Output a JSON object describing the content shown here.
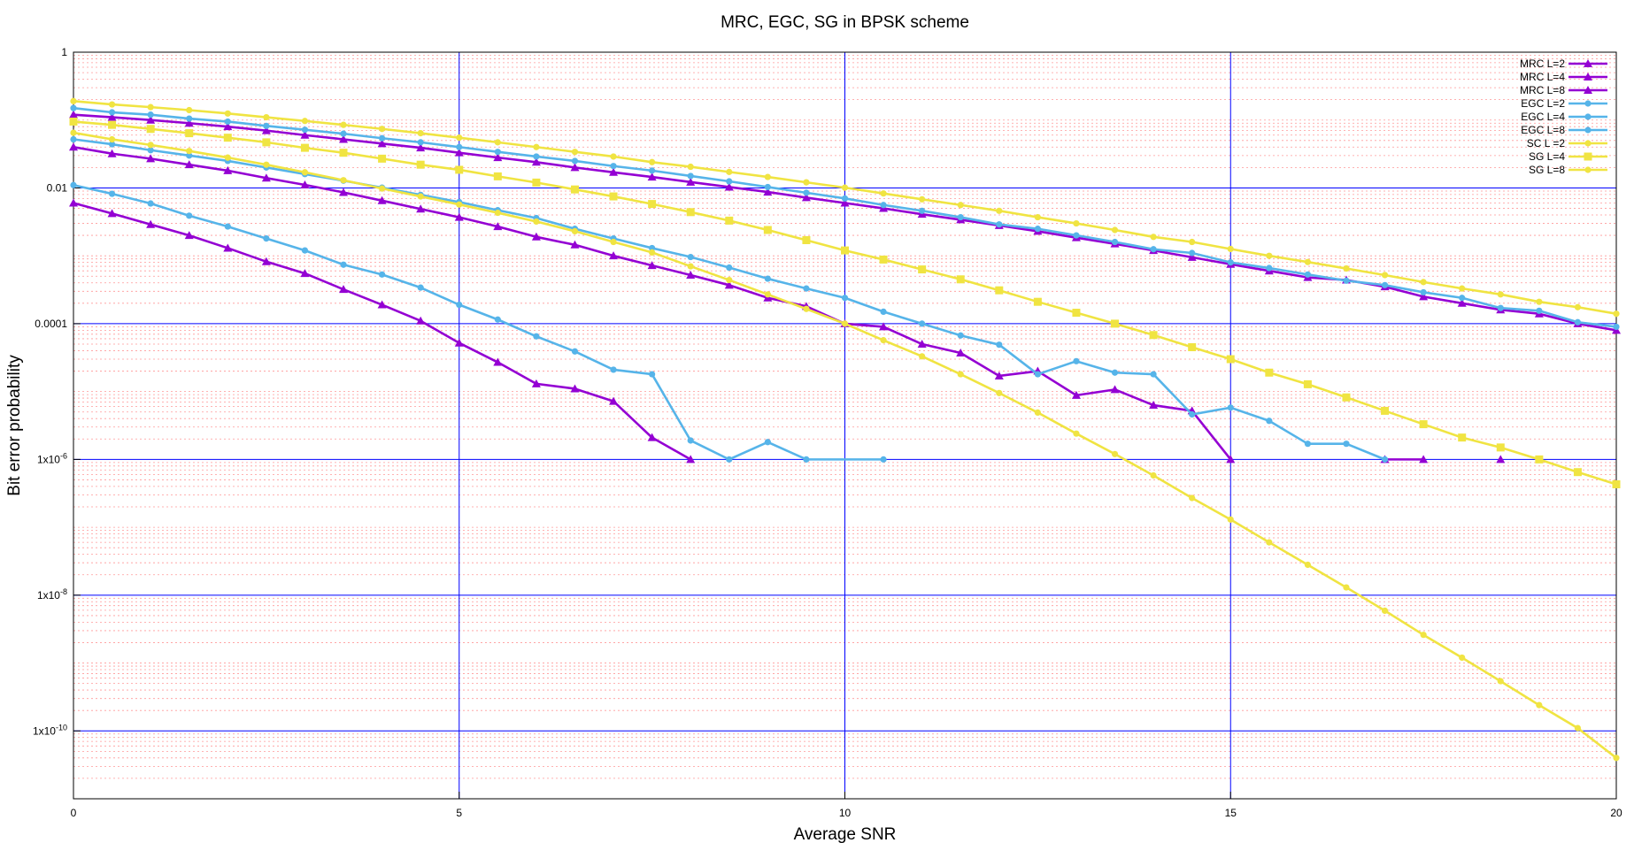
{
  "chart_data": {
    "type": "line",
    "title": "MRC, EGC, SG in BPSK scheme",
    "xlabel": "Average SNR",
    "ylabel": "Bit error probability",
    "xlim": [
      0,
      20
    ],
    "ylim": [
      1e-11,
      1
    ],
    "yscale": "log",
    "grid": true,
    "legend_position": "top-right",
    "xticks": [
      0,
      5,
      10,
      15,
      20
    ],
    "yticks": [
      {
        "value": 1,
        "base": "1",
        "exp": ""
      },
      {
        "value": 0.01,
        "base": "0.01",
        "exp": ""
      },
      {
        "value": 0.0001,
        "base": "0.0001",
        "exp": ""
      },
      {
        "value": 1e-06,
        "base": "1x10",
        "exp": "-6"
      },
      {
        "value": 1e-08,
        "base": "1x10",
        "exp": "-8"
      },
      {
        "value": 1e-10,
        "base": "1x10",
        "exp": "-10"
      }
    ],
    "colors": {
      "MRC": "#9400d3",
      "EGC": "#56b4e9",
      "SG": "#f0e442",
      "major_grid": "#0000ff",
      "minor_grid": "#ff9999"
    },
    "series": [
      {
        "name": "MRC L=2",
        "group": "MRC",
        "marker": "triangle",
        "color": "#9400d3",
        "x": [
          0,
          0.5,
          1,
          1.5,
          2,
          2.5,
          3,
          3.5,
          4,
          4.5,
          5,
          5.5,
          6,
          6.5,
          7,
          7.5,
          8,
          8.5,
          9,
          9.5,
          10,
          10.5,
          11,
          11.5,
          12,
          12.5,
          13,
          13.5,
          14,
          14.5,
          15,
          15.5,
          16,
          16.5,
          17,
          17.5,
          18,
          18.5,
          19,
          19.5,
          20
        ],
        "y": [
          0.12,
          0.11,
          0.1,
          0.09,
          0.08,
          0.07,
          0.06,
          0.052,
          0.045,
          0.039,
          0.033,
          0.028,
          0.024,
          0.02,
          0.017,
          0.0145,
          0.0122,
          0.0103,
          0.0087,
          0.0072,
          0.006,
          0.005,
          0.0041,
          0.0034,
          0.0028,
          0.0023,
          0.00185,
          0.0015,
          0.0012,
          0.00095,
          0.00075,
          0.0006,
          0.00048,
          0.00044,
          0.00035,
          0.00025,
          0.0002,
          0.00016,
          0.00014,
          0.0001,
          8e-05
        ]
      },
      {
        "name": "MRC L=4",
        "group": "MRC",
        "marker": "triangle",
        "color": "#9400d3",
        "x": [
          0,
          0.5,
          1,
          1.5,
          2,
          2.5,
          3,
          3.5,
          4,
          4.5,
          5,
          5.5,
          6,
          6.5,
          7,
          7.5,
          8,
          8.5,
          9,
          9.5,
          10,
          10.5,
          11,
          11.5,
          12,
          12.5,
          13,
          13.5,
          14,
          14.5,
          15,
          15.5,
          16,
          16.5,
          17,
          17.5,
          18,
          18.5,
          19,
          19.5,
          20
        ],
        "y": [
          0.04,
          0.032,
          0.027,
          0.022,
          0.018,
          0.014,
          0.0111,
          0.0086,
          0.0065,
          0.0049,
          0.0037,
          0.0027,
          0.0019,
          0.00145,
          0.001,
          0.00072,
          0.00052,
          0.00037,
          0.00024,
          0.00018,
          0.0001,
          9e-05,
          5e-05,
          3.7e-05,
          1.7e-05,
          2e-05,
          8.8e-06,
          1.07e-05,
          6.3e-06,
          5.2e-06,
          1e-06,
          null,
          null,
          null,
          1e-06,
          1e-06,
          null,
          1e-06,
          null,
          null,
          null
        ]
      },
      {
        "name": "MRC L=8",
        "group": "MRC",
        "marker": "triangle",
        "color": "#9400d3",
        "x": [
          0,
          0.5,
          1,
          1.5,
          2,
          2.5,
          3,
          3.5,
          4,
          4.5,
          5,
          5.5,
          6,
          6.5,
          7,
          7.5,
          8
        ],
        "y": [
          0.006,
          0.0042,
          0.0029,
          0.002,
          0.0013,
          0.00082,
          0.00055,
          0.00032,
          0.00019,
          0.00011,
          5.2e-05,
          2.7e-05,
          1.3e-05,
          1.1e-05,
          7.2e-06,
          2.1e-06,
          1e-06
        ]
      },
      {
        "name": "EGC L=2",
        "group": "EGC",
        "marker": "circle",
        "color": "#56b4e9",
        "x": [
          0,
          0.5,
          1,
          1.5,
          2,
          2.5,
          3,
          3.5,
          4,
          4.5,
          5,
          5.5,
          6,
          6.5,
          7,
          7.5,
          8,
          8.5,
          9,
          9.5,
          10,
          10.5,
          11,
          11.5,
          12,
          12.5,
          13,
          13.5,
          14,
          14.5,
          15,
          15.5,
          16,
          16.5,
          17,
          17.5,
          18,
          18.5,
          19,
          19.5,
          20
        ],
        "y": [
          0.15,
          0.13,
          0.12,
          0.105,
          0.095,
          0.082,
          0.072,
          0.063,
          0.054,
          0.047,
          0.04,
          0.034,
          0.029,
          0.025,
          0.021,
          0.018,
          0.015,
          0.0125,
          0.0103,
          0.0085,
          0.007,
          0.0056,
          0.0046,
          0.0037,
          0.0029,
          0.0025,
          0.002,
          0.0016,
          0.00125,
          0.0011,
          0.0008,
          0.00066,
          0.00053,
          0.00043,
          0.00037,
          0.00029,
          0.00024,
          0.00017,
          0.000155,
          0.000105,
          9e-05
        ]
      },
      {
        "name": "EGC L=4",
        "group": "EGC",
        "marker": "circle",
        "color": "#56b4e9",
        "x": [
          0,
          0.5,
          1,
          1.5,
          2,
          2.5,
          3,
          3.5,
          4,
          4.5,
          5,
          5.5,
          6,
          6.5,
          7,
          7.5,
          8,
          8.5,
          9,
          9.5,
          10,
          10.5,
          11,
          11.5,
          12,
          12.5,
          13,
          13.5,
          14,
          14.5,
          15,
          15.5,
          16,
          16.5,
          17
        ],
        "y": [
          0.052,
          0.044,
          0.036,
          0.03,
          0.025,
          0.02,
          0.016,
          0.0128,
          0.0101,
          0.0079,
          0.0062,
          0.0047,
          0.0036,
          0.0025,
          0.0018,
          0.0013,
          0.00096,
          0.00067,
          0.00046,
          0.00033,
          0.00024,
          0.00015,
          0.0001,
          6.7e-05,
          4.9e-05,
          1.8e-05,
          2.8e-05,
          1.9e-05,
          1.8e-05,
          4.6e-06,
          5.8e-06,
          3.7e-06,
          1.7e-06,
          1.7e-06,
          1e-06
        ]
      },
      {
        "name": "EGC L=8",
        "group": "EGC",
        "marker": "circle",
        "color": "#56b4e9",
        "x": [
          0,
          0.5,
          1,
          1.5,
          2,
          2.5,
          3,
          3.5,
          4,
          4.5,
          5,
          5.5,
          6,
          6.5,
          7,
          7.5,
          8,
          8.5,
          9,
          9.5,
          10.5
        ],
        "y": [
          0.011,
          0.0082,
          0.0059,
          0.0039,
          0.0027,
          0.0018,
          0.0012,
          0.00074,
          0.00053,
          0.00034,
          0.00019,
          0.000115,
          6.5e-05,
          3.9e-05,
          2.1e-05,
          1.8e-05,
          1.9e-06,
          1e-06,
          1.8e-06,
          1e-06,
          1e-06
        ]
      },
      {
        "name": "SC L =2",
        "group": "SG",
        "marker": "circle",
        "color": "#f0e442",
        "x": [
          0,
          0.5,
          1,
          1.5,
          2,
          2.5,
          3,
          3.5,
          4,
          4.5,
          5,
          5.5,
          6,
          6.5,
          7,
          7.5,
          8,
          8.5,
          9,
          9.5,
          10,
          10.5,
          11,
          11.5,
          12,
          12.5,
          13,
          13.5,
          14,
          14.5,
          15,
          15.5,
          16,
          16.5,
          17,
          17.5,
          18,
          18.5,
          19,
          19.5,
          20
        ],
        "y": [
          0.19,
          0.17,
          0.155,
          0.14,
          0.125,
          0.11,
          0.097,
          0.085,
          0.074,
          0.064,
          0.055,
          0.047,
          0.04,
          0.034,
          0.029,
          0.024,
          0.0205,
          0.0172,
          0.0145,
          0.0121,
          0.0101,
          0.0083,
          0.0068,
          0.0056,
          0.0046,
          0.0037,
          0.003,
          0.0024,
          0.0019,
          0.0016,
          0.00126,
          0.001,
          0.00081,
          0.00065,
          0.00052,
          0.00041,
          0.00033,
          0.00027,
          0.00021,
          0.000175,
          0.00014
        ]
      },
      {
        "name": "SG L=4",
        "group": "SG",
        "marker": "square",
        "color": "#f0e442",
        "x": [
          0,
          0.5,
          1,
          1.5,
          2,
          2.5,
          3,
          3.5,
          4,
          4.5,
          5,
          5.5,
          6,
          6.5,
          7,
          7.5,
          8,
          8.5,
          9,
          9.5,
          10,
          10.5,
          11,
          11.5,
          12,
          12.5,
          13,
          13.5,
          14,
          14.5,
          15,
          15.5,
          16,
          16.5,
          17,
          17.5,
          18,
          18.5,
          19,
          19.5,
          20
        ],
        "y": [
          0.095,
          0.085,
          0.074,
          0.064,
          0.055,
          0.047,
          0.039,
          0.033,
          0.027,
          0.022,
          0.0185,
          0.0148,
          0.012,
          0.0095,
          0.0075,
          0.0058,
          0.0044,
          0.0033,
          0.0024,
          0.0017,
          0.0012,
          0.00088,
          0.00063,
          0.00045,
          0.00031,
          0.00021,
          0.000145,
          0.0001,
          6.8e-05,
          4.5e-05,
          3e-05,
          1.9e-05,
          1.28e-05,
          8.2e-06,
          5.2e-06,
          3.3e-06,
          2.1e-06,
          1.5e-06,
          1e-06,
          6.5e-07,
          4.3e-07
        ]
      },
      {
        "name": "SG L=8",
        "group": "SG",
        "marker": "circle",
        "color": "#f0e442",
        "x": [
          0,
          0.5,
          1,
          1.5,
          2,
          2.5,
          3,
          3.5,
          4,
          4.5,
          5,
          5.5,
          6,
          6.5,
          7,
          7.5,
          8,
          8.5,
          9,
          9.5,
          10,
          10.5,
          11,
          11.5,
          12,
          12.5,
          13,
          13.5,
          14,
          14.5,
          15,
          15.5,
          16,
          16.5,
          17,
          17.5,
          18,
          18.5,
          19,
          19.5,
          20
        ],
        "y": [
          0.065,
          0.052,
          0.043,
          0.035,
          0.028,
          0.022,
          0.017,
          0.013,
          0.0098,
          0.0075,
          0.0057,
          0.0043,
          0.0032,
          0.0023,
          0.0016,
          0.00112,
          0.0007,
          0.00044,
          0.00027,
          0.000165,
          0.0001,
          5.7e-05,
          3.3e-05,
          1.8e-05,
          9.5e-06,
          4.9e-06,
          2.4e-06,
          1.2e-06,
          5.8e-07,
          2.7e-07,
          1.3e-07,
          6e-08,
          2.8e-08,
          1.3e-08,
          5.9e-09,
          2.6e-09,
          1.2e-09,
          5.4e-10,
          2.4e-10,
          1.1e-10,
          4e-11
        ]
      }
    ]
  }
}
